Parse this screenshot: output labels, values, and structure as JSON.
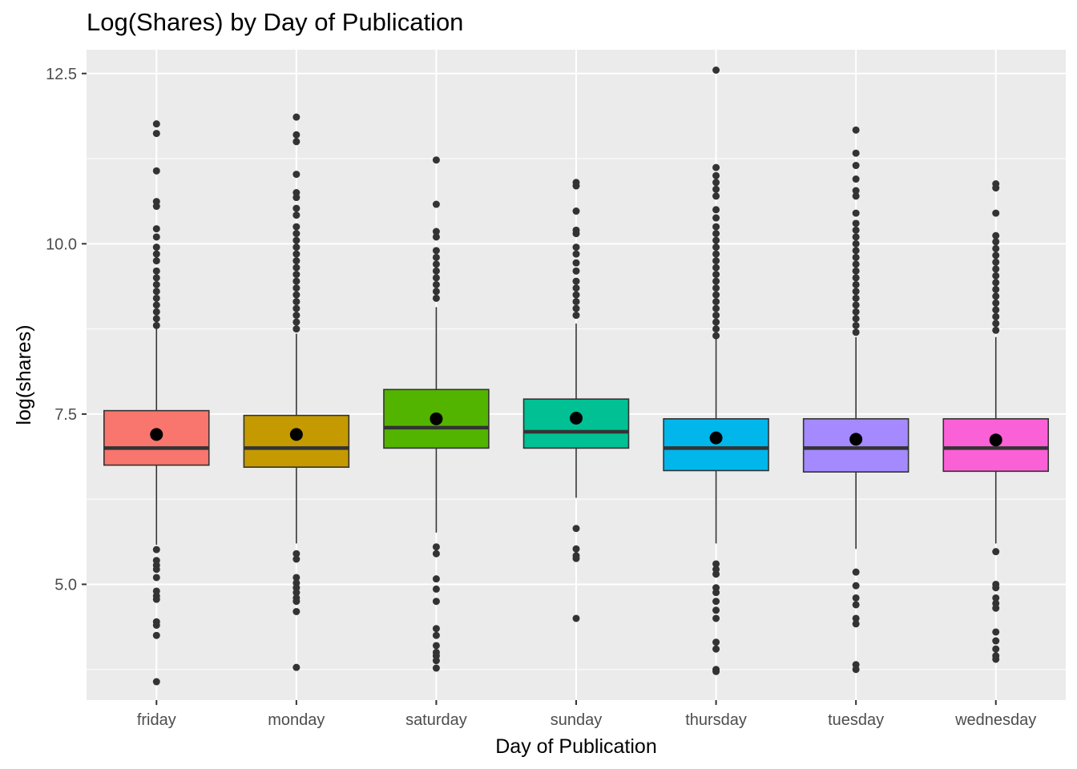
{
  "chart_data": {
    "type": "box",
    "title": "Log(Shares) by Day of Publication",
    "xlabel": "Day of Publication",
    "ylabel": "log(shares)",
    "ylim": [
      3.3,
      12.85
    ],
    "yticks": [
      5.0,
      7.5,
      10.0,
      12.5
    ],
    "ytick_labels": [
      "5.0",
      "7.5",
      "10.0",
      "12.5"
    ],
    "grid": true,
    "legend": "none",
    "categories": [
      "friday",
      "monday",
      "saturday",
      "sunday",
      "thursday",
      "tuesday",
      "wednesday"
    ],
    "colors": [
      "#F8766D",
      "#C49A00",
      "#53B400",
      "#00C094",
      "#00B6EB",
      "#A58AFF",
      "#FB61D7"
    ],
    "boxes": [
      {
        "category": "friday",
        "q1": 6.75,
        "median": 7.0,
        "q3": 7.55,
        "whisker_low": 5.58,
        "whisker_high": 8.75,
        "mean": 7.2,
        "outliers": [
          11.76,
          11.62,
          11.07,
          10.62,
          10.55,
          10.22,
          10.1,
          9.95,
          9.85,
          9.75,
          9.6,
          9.5,
          9.4,
          9.3,
          9.2,
          9.1,
          9.0,
          8.9,
          8.8,
          5.51,
          5.35,
          5.28,
          5.22,
          5.1,
          4.9,
          4.83,
          4.78,
          4.45,
          4.4,
          4.25,
          3.57
        ]
      },
      {
        "category": "monday",
        "q1": 6.72,
        "median": 7.0,
        "q3": 7.48,
        "whisker_low": 5.6,
        "whisker_high": 8.68,
        "mean": 7.2,
        "outliers": [
          11.86,
          11.6,
          11.5,
          11.02,
          10.75,
          10.68,
          10.52,
          10.42,
          10.25,
          10.15,
          10.05,
          9.95,
          9.85,
          9.75,
          9.65,
          9.55,
          9.45,
          9.35,
          9.25,
          9.15,
          9.05,
          8.95,
          8.85,
          8.75,
          5.45,
          5.37,
          5.1,
          5.02,
          4.95,
          4.88,
          4.8,
          4.75,
          4.6,
          3.78
        ]
      },
      {
        "category": "saturday",
        "q1": 7.0,
        "median": 7.3,
        "q3": 7.86,
        "whisker_low": 5.76,
        "whisker_high": 9.07,
        "mean": 7.43,
        "outliers": [
          11.23,
          10.58,
          10.18,
          10.1,
          9.9,
          9.8,
          9.7,
          9.6,
          9.5,
          9.4,
          9.3,
          9.2,
          5.55,
          5.45,
          5.08,
          4.93,
          4.75,
          4.35,
          4.25,
          4.1,
          4.0,
          3.95,
          3.88,
          3.77
        ]
      },
      {
        "category": "sunday",
        "q1": 7.0,
        "median": 7.24,
        "q3": 7.72,
        "whisker_low": 6.27,
        "whisker_high": 8.83,
        "mean": 7.44,
        "outliers": [
          10.9,
          10.85,
          10.48,
          10.2,
          10.15,
          9.95,
          9.85,
          9.72,
          9.6,
          9.45,
          9.35,
          9.25,
          9.15,
          9.05,
          8.95,
          5.82,
          5.52,
          5.42,
          5.38,
          4.5
        ]
      },
      {
        "category": "thursday",
        "q1": 6.67,
        "median": 7.0,
        "q3": 7.43,
        "whisker_low": 5.6,
        "whisker_high": 8.6,
        "mean": 7.15,
        "outliers": [
          12.55,
          11.12,
          11.0,
          10.9,
          10.8,
          10.7,
          10.5,
          10.38,
          10.25,
          10.15,
          10.05,
          9.95,
          9.85,
          9.75,
          9.65,
          9.55,
          9.45,
          9.35,
          9.25,
          9.15,
          9.05,
          8.95,
          8.85,
          8.75,
          8.65,
          5.3,
          5.22,
          5.15,
          4.95,
          4.88,
          4.75,
          4.62,
          4.5,
          4.15,
          4.05,
          3.75,
          3.72
        ]
      },
      {
        "category": "tuesday",
        "q1": 6.65,
        "median": 7.0,
        "q3": 7.43,
        "whisker_low": 5.52,
        "whisker_high": 8.63,
        "mean": 7.13,
        "outliers": [
          11.67,
          11.33,
          11.15,
          10.95,
          10.78,
          10.7,
          10.45,
          10.3,
          10.2,
          10.1,
          10.0,
          9.9,
          9.8,
          9.7,
          9.6,
          9.5,
          9.4,
          9.3,
          9.2,
          9.1,
          9.0,
          8.9,
          8.8,
          8.7,
          5.18,
          4.98,
          4.8,
          4.7,
          4.5,
          4.42,
          3.82,
          3.75
        ]
      },
      {
        "category": "wednesday",
        "q1": 6.66,
        "median": 7.0,
        "q3": 7.43,
        "whisker_low": 5.6,
        "whisker_high": 8.63,
        "mean": 7.12,
        "outliers": [
          10.88,
          10.82,
          10.45,
          10.12,
          10.03,
          9.93,
          9.83,
          9.73,
          9.63,
          9.53,
          9.43,
          9.33,
          9.23,
          9.13,
          9.03,
          8.93,
          8.83,
          8.73,
          5.48,
          5.0,
          4.95,
          4.8,
          4.72,
          4.65,
          4.3,
          4.17,
          4.05,
          3.95,
          3.9
        ]
      }
    ]
  }
}
